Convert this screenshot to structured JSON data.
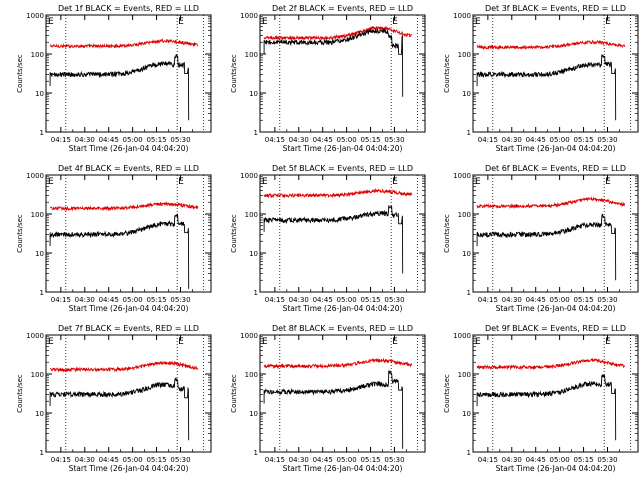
{
  "chart_data": {
    "type": "line",
    "y_scale": "log",
    "ylim": [
      1,
      1000
    ],
    "yticks": [
      1,
      10,
      100,
      1000
    ],
    "ytick_labels": [
      "1",
      "10",
      "100",
      "1000"
    ],
    "xticks": [
      "04:15",
      "04:30",
      "04:45",
      "05:00",
      "05:15",
      "05:30"
    ],
    "ylabel": "Counts/sec",
    "xlabel": "Start Time (26-Jan-04 04:04:20)",
    "series_colors": {
      "events": "#000000",
      "lld": "#e00000"
    },
    "marker_label": "E",
    "panels": [
      {
        "title": "Det 1f BLACK = Events, RED = LLD",
        "lld_base": 160,
        "lld_bump": 1.35,
        "ev_base": 30,
        "ev_bump": 1.9,
        "ev_peak": 90,
        "drop_to": 2
      },
      {
        "title": "Det 2f BLACK = Events, RED = LLD",
        "lld_base": 260,
        "lld_bump": 1.8,
        "ev_base": 200,
        "ev_bump": 2.0,
        "ev_peak": 280,
        "drop_to": 8
      },
      {
        "title": "Det 3f BLACK = Events, RED = LLD",
        "lld_base": 150,
        "lld_bump": 1.35,
        "ev_base": 30,
        "ev_bump": 1.8,
        "ev_peak": 90,
        "drop_to": 2
      },
      {
        "title": "Det 4f BLACK = Events, RED = LLD",
        "lld_base": 140,
        "lld_bump": 1.3,
        "ev_base": 30,
        "ev_bump": 1.9,
        "ev_peak": 95,
        "drop_to": 1.2
      },
      {
        "title": "Det 5f BLACK = Events, RED = LLD",
        "lld_base": 300,
        "lld_bump": 1.3,
        "ev_base": 70,
        "ev_bump": 1.5,
        "ev_peak": 160,
        "drop_to": 3
      },
      {
        "title": "Det 6f BLACK = Events, RED = LLD",
        "lld_base": 160,
        "lld_bump": 1.5,
        "ev_base": 30,
        "ev_bump": 1.8,
        "ev_peak": 90,
        "drop_to": 2
      },
      {
        "title": "Det 7f BLACK = Events, RED = LLD",
        "lld_base": 130,
        "lld_bump": 1.5,
        "ev_base": 30,
        "ev_bump": 1.8,
        "ev_peak": 70,
        "drop_to": 2
      },
      {
        "title": "Det 8f BLACK = Events, RED = LLD",
        "lld_base": 160,
        "lld_bump": 1.4,
        "ev_base": 35,
        "ev_bump": 1.6,
        "ev_peak": 110,
        "drop_to": 1.2
      },
      {
        "title": "Det 9f BLACK = Events, RED = LLD",
        "lld_base": 150,
        "lld_bump": 1.5,
        "ev_base": 30,
        "ev_bump": 1.9,
        "ev_peak": 90,
        "drop_to": 2
      }
    ]
  }
}
